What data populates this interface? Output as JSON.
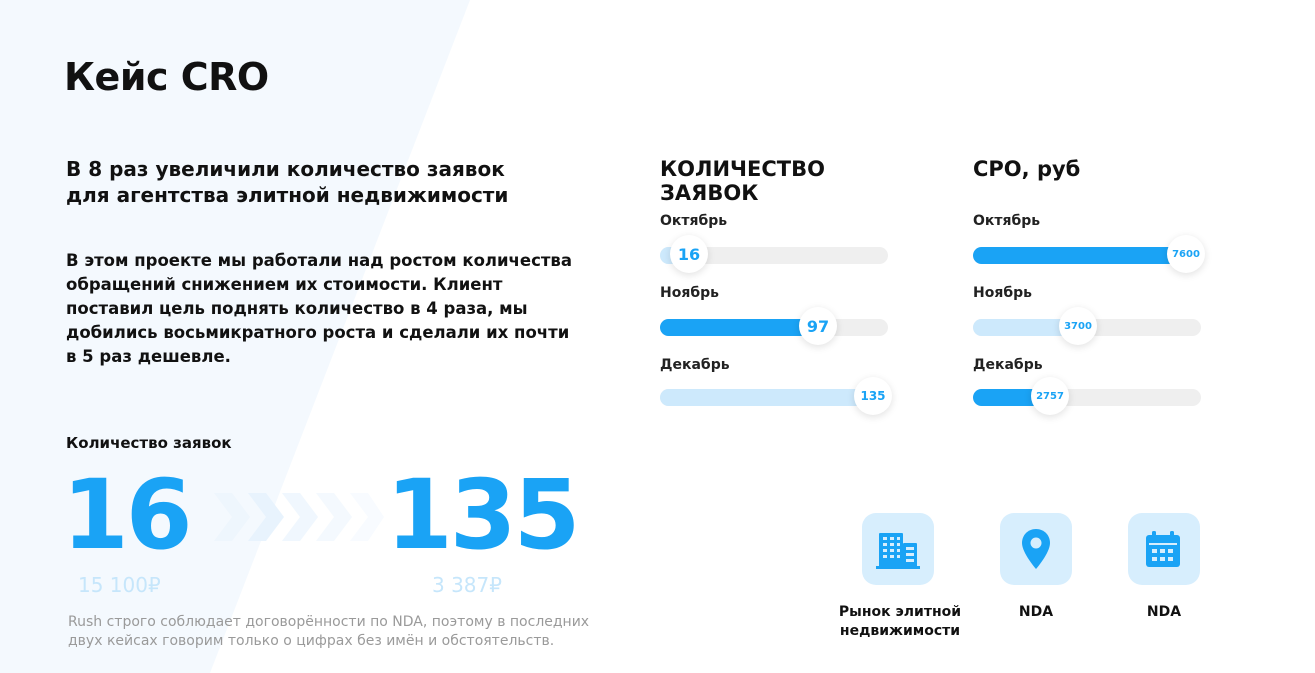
{
  "title": "Кейс CRO",
  "subtitle_lines": [
    "В 8 раз увеличили количество заявок",
    "для агентства элитной недвижимости"
  ],
  "description_lines": [
    "В этом проекте мы работали над ростом количества",
    "обращений снижением их стоимости. Клиент",
    "поставил цель поднять количество в 4 раза, мы",
    "добились восьмикратного роста и сделали их почти",
    "в 5 раз дешевле."
  ],
  "summary": {
    "label": "Количество заявок",
    "start_value": "16",
    "end_value": "135",
    "start_price": "15 100₽",
    "end_price": "3 387₽"
  },
  "note_lines": [
    "Rush строго соблюдает договорённости по NDA, поэтому в последних",
    "двух кейсах говорим только о цифрах без имён и обстоятельств."
  ],
  "leads_panel": {
    "title_lines": [
      "КОЛИЧЕСТВО",
      "ЗАЯВОК"
    ],
    "max": 135,
    "rows": [
      {
        "month": "Октябрь",
        "value": 16,
        "label": "16",
        "fill_color": "#cde9fc"
      },
      {
        "month": "Ноябрь",
        "value": 97,
        "label": "97",
        "fill_color": "#1aa3f5"
      },
      {
        "month": "Декабрь",
        "value": 135,
        "label": "135",
        "fill_color": "#cde9fc"
      }
    ]
  },
  "cpo_panel": {
    "title": "СРО, руб",
    "max": 7600,
    "rows": [
      {
        "month": "Октябрь",
        "value": 7600,
        "label": "7600",
        "fill_color": "#1aa3f5"
      },
      {
        "month": "Ноябрь",
        "value": 3700,
        "label": "3700",
        "fill_color": "#cde9fc"
      },
      {
        "month": "Декабрь",
        "value": 2757,
        "label": "2757",
        "fill_color": "#1aa3f5"
      }
    ]
  },
  "tiles": [
    {
      "icon": "building-icon",
      "caption_lines": [
        "Рынок элитной",
        "недвижимости"
      ]
    },
    {
      "icon": "map-pin-icon",
      "caption_lines": [
        "NDA"
      ]
    },
    {
      "icon": "calendar-icon",
      "caption_lines": [
        "NDA"
      ]
    }
  ],
  "colors": {
    "accent": "#1aa3f5",
    "accent_light": "#cde9fc",
    "track": "#efefef",
    "tile_bg": "#d7eefd",
    "muted_price": "#c6e6fb"
  }
}
